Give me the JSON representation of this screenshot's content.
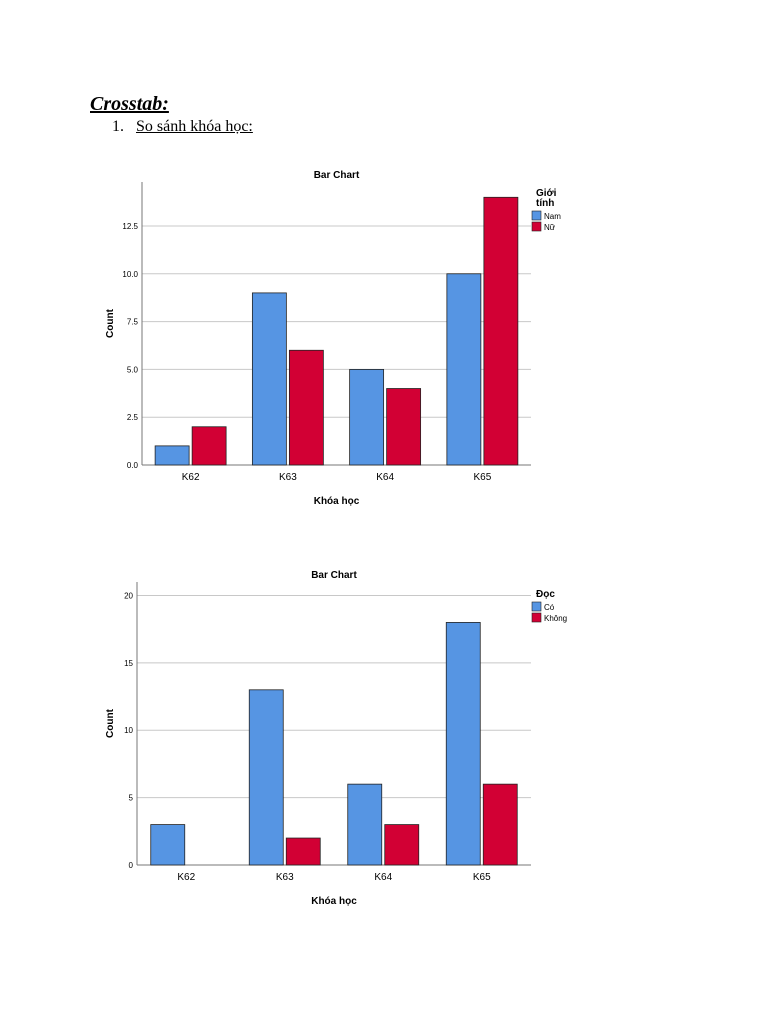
{
  "document": {
    "heading": "Crosstab:",
    "list_number": "1.",
    "list_item": "So sánh khóa học: "
  },
  "colors": {
    "series1": "#5695e3",
    "series2": "#d20034",
    "grid": "#c8c8c8",
    "axis": "#777777"
  },
  "chart_data": [
    {
      "type": "bar",
      "title": "Bar Chart",
      "xlabel": "Khóa học",
      "ylabel": "Count",
      "categories": [
        "K62",
        "K63",
        "K64",
        "K65"
      ],
      "ylim": [
        0,
        14.8
      ],
      "yticks": [
        0,
        2.5,
        5,
        7.5,
        10,
        12.5
      ],
      "ytick_labels": [
        "0.0",
        "2.5",
        "5.0",
        "7.5",
        "10.0",
        "12.5"
      ],
      "legend_title": [
        "Giới",
        "tính"
      ],
      "series": [
        {
          "name": "Nam",
          "values": [
            1,
            9,
            5,
            10
          ]
        },
        {
          "name": "Nữ",
          "values": [
            2,
            6,
            4,
            14
          ]
        }
      ]
    },
    {
      "type": "bar",
      "title": "Bar Chart",
      "xlabel": "Khóa học",
      "ylabel": "Count",
      "categories": [
        "K62",
        "K63",
        "K64",
        "K65"
      ],
      "ylim": [
        0,
        21
      ],
      "yticks": [
        0,
        5,
        10,
        15,
        20
      ],
      "ytick_labels": [
        "0",
        "5",
        "10",
        "15",
        "20"
      ],
      "legend_title": [
        "Đọc"
      ],
      "series": [
        {
          "name": "Có",
          "values": [
            3,
            13,
            6,
            18
          ]
        },
        {
          "name": "Không",
          "values": [
            0,
            2,
            3,
            6
          ]
        }
      ]
    }
  ]
}
